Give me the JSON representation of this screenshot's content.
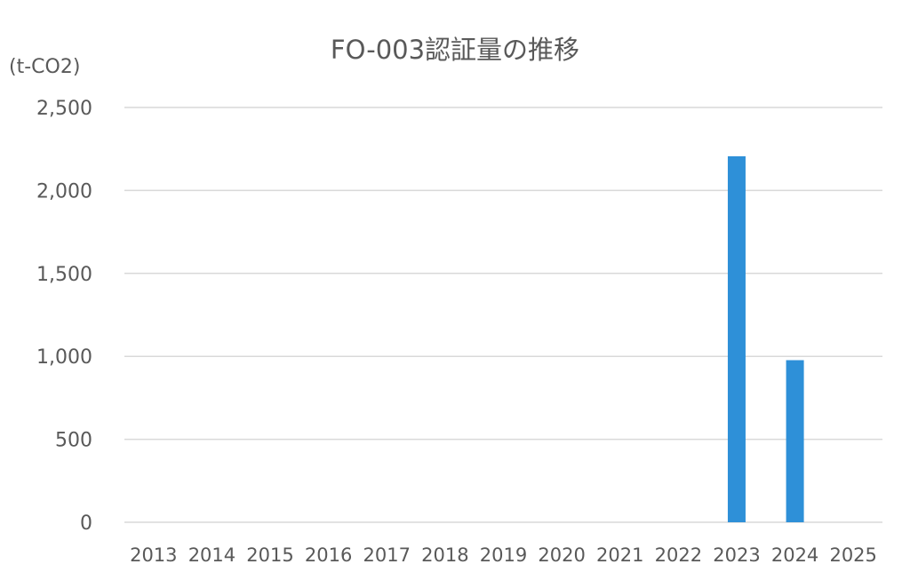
{
  "chart_data": {
    "type": "bar",
    "title": "FO-003認証量の推移",
    "ylabel": "(t-CO2)",
    "xlabel": "",
    "categories": [
      "2013",
      "2014",
      "2015",
      "2016",
      "2017",
      "2018",
      "2019",
      "2020",
      "2021",
      "2022",
      "2023",
      "2024",
      "2025"
    ],
    "values": [
      0,
      0,
      0,
      0,
      0,
      0,
      0,
      0,
      0,
      0,
      2206,
      977,
      0
    ],
    "ylim": [
      0,
      2500
    ],
    "yticks": [
      0,
      500,
      1000,
      1500,
      2000,
      2500
    ],
    "ytick_labels": [
      "0",
      "500",
      "1,000",
      "1,500",
      "2,000",
      "2,500"
    ],
    "grid": true,
    "legend": "none",
    "bar_color": "#2E90D8",
    "grid_color": "#D9D9D9"
  }
}
